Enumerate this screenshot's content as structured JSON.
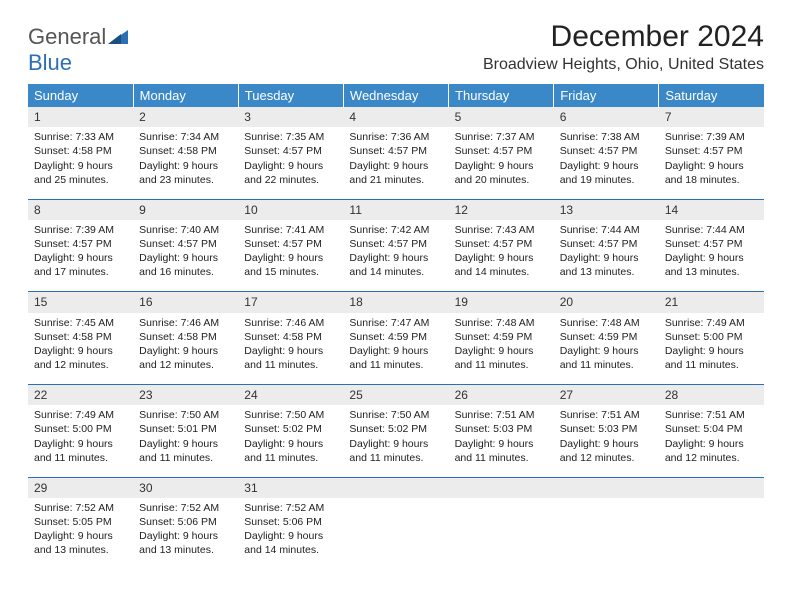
{
  "logo": {
    "general": "General",
    "blue": "Blue"
  },
  "title": "December 2024",
  "location": "Broadview Heights, Ohio, United States",
  "header_color": "#3b88c9",
  "rule_color": "#2d6fb6",
  "daynum_bg": "#ececec",
  "weekdays": [
    "Sunday",
    "Monday",
    "Tuesday",
    "Wednesday",
    "Thursday",
    "Friday",
    "Saturday"
  ],
  "weeks": [
    [
      {
        "n": "1",
        "sr": "7:33 AM",
        "ss": "4:58 PM",
        "dl": "9 hours and 25 minutes."
      },
      {
        "n": "2",
        "sr": "7:34 AM",
        "ss": "4:58 PM",
        "dl": "9 hours and 23 minutes."
      },
      {
        "n": "3",
        "sr": "7:35 AM",
        "ss": "4:57 PM",
        "dl": "9 hours and 22 minutes."
      },
      {
        "n": "4",
        "sr": "7:36 AM",
        "ss": "4:57 PM",
        "dl": "9 hours and 21 minutes."
      },
      {
        "n": "5",
        "sr": "7:37 AM",
        "ss": "4:57 PM",
        "dl": "9 hours and 20 minutes."
      },
      {
        "n": "6",
        "sr": "7:38 AM",
        "ss": "4:57 PM",
        "dl": "9 hours and 19 minutes."
      },
      {
        "n": "7",
        "sr": "7:39 AM",
        "ss": "4:57 PM",
        "dl": "9 hours and 18 minutes."
      }
    ],
    [
      {
        "n": "8",
        "sr": "7:39 AM",
        "ss": "4:57 PM",
        "dl": "9 hours and 17 minutes."
      },
      {
        "n": "9",
        "sr": "7:40 AM",
        "ss": "4:57 PM",
        "dl": "9 hours and 16 minutes."
      },
      {
        "n": "10",
        "sr": "7:41 AM",
        "ss": "4:57 PM",
        "dl": "9 hours and 15 minutes."
      },
      {
        "n": "11",
        "sr": "7:42 AM",
        "ss": "4:57 PM",
        "dl": "9 hours and 14 minutes."
      },
      {
        "n": "12",
        "sr": "7:43 AM",
        "ss": "4:57 PM",
        "dl": "9 hours and 14 minutes."
      },
      {
        "n": "13",
        "sr": "7:44 AM",
        "ss": "4:57 PM",
        "dl": "9 hours and 13 minutes."
      },
      {
        "n": "14",
        "sr": "7:44 AM",
        "ss": "4:57 PM",
        "dl": "9 hours and 13 minutes."
      }
    ],
    [
      {
        "n": "15",
        "sr": "7:45 AM",
        "ss": "4:58 PM",
        "dl": "9 hours and 12 minutes."
      },
      {
        "n": "16",
        "sr": "7:46 AM",
        "ss": "4:58 PM",
        "dl": "9 hours and 12 minutes."
      },
      {
        "n": "17",
        "sr": "7:46 AM",
        "ss": "4:58 PM",
        "dl": "9 hours and 11 minutes."
      },
      {
        "n": "18",
        "sr": "7:47 AM",
        "ss": "4:59 PM",
        "dl": "9 hours and 11 minutes."
      },
      {
        "n": "19",
        "sr": "7:48 AM",
        "ss": "4:59 PM",
        "dl": "9 hours and 11 minutes."
      },
      {
        "n": "20",
        "sr": "7:48 AM",
        "ss": "4:59 PM",
        "dl": "9 hours and 11 minutes."
      },
      {
        "n": "21",
        "sr": "7:49 AM",
        "ss": "5:00 PM",
        "dl": "9 hours and 11 minutes."
      }
    ],
    [
      {
        "n": "22",
        "sr": "7:49 AM",
        "ss": "5:00 PM",
        "dl": "9 hours and 11 minutes."
      },
      {
        "n": "23",
        "sr": "7:50 AM",
        "ss": "5:01 PM",
        "dl": "9 hours and 11 minutes."
      },
      {
        "n": "24",
        "sr": "7:50 AM",
        "ss": "5:02 PM",
        "dl": "9 hours and 11 minutes."
      },
      {
        "n": "25",
        "sr": "7:50 AM",
        "ss": "5:02 PM",
        "dl": "9 hours and 11 minutes."
      },
      {
        "n": "26",
        "sr": "7:51 AM",
        "ss": "5:03 PM",
        "dl": "9 hours and 11 minutes."
      },
      {
        "n": "27",
        "sr": "7:51 AM",
        "ss": "5:03 PM",
        "dl": "9 hours and 12 minutes."
      },
      {
        "n": "28",
        "sr": "7:51 AM",
        "ss": "5:04 PM",
        "dl": "9 hours and 12 minutes."
      }
    ],
    [
      {
        "n": "29",
        "sr": "7:52 AM",
        "ss": "5:05 PM",
        "dl": "9 hours and 13 minutes."
      },
      {
        "n": "30",
        "sr": "7:52 AM",
        "ss": "5:06 PM",
        "dl": "9 hours and 13 minutes."
      },
      {
        "n": "31",
        "sr": "7:52 AM",
        "ss": "5:06 PM",
        "dl": "9 hours and 14 minutes."
      },
      null,
      null,
      null,
      null
    ]
  ],
  "labels": {
    "sunrise": "Sunrise:",
    "sunset": "Sunset:",
    "daylight": "Daylight:"
  }
}
